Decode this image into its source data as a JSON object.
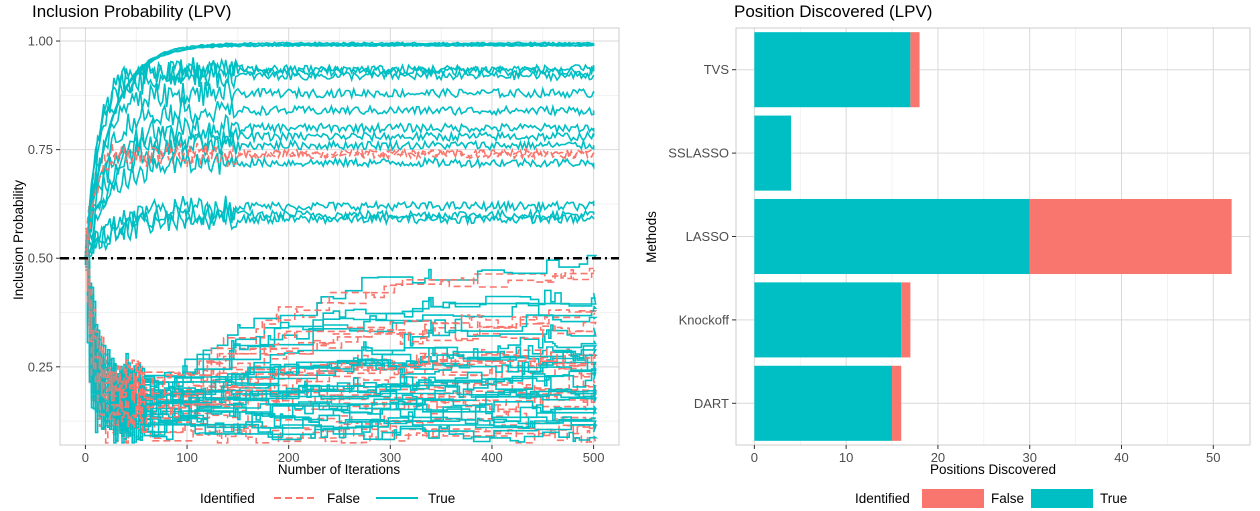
{
  "chart_data": [
    {
      "type": "line",
      "title": "Inclusion Probability (LPV)",
      "xlabel": "Number of Iterations",
      "ylabel": "Inclusion Probability",
      "xlim": [
        -25,
        525
      ],
      "ylim": [
        0.07,
        1.03
      ],
      "x_ticks": [
        0,
        100,
        200,
        300,
        400,
        500
      ],
      "x_tick_labels": [
        "0",
        "100",
        "200",
        "300",
        "400",
        "500"
      ],
      "y_ticks": [
        0.25,
        0.5,
        0.75,
        1.0
      ],
      "y_tick_labels": [
        "0.25",
        "0.50",
        "0.75",
        "1.00"
      ],
      "threshold": 0.5,
      "grid": true,
      "legend": {
        "title": "Identified",
        "position": "bottom",
        "entries": [
          "False",
          "True"
        ]
      },
      "colors": {
        "False": "#F8766D",
        "True": "#00BFC4",
        "threshold": "#000000"
      },
      "series_groups": [
        {
          "name": "True",
          "style": "solid",
          "final_values": [
            0.995,
            0.993,
            0.99,
            0.99,
            0.935,
            0.93,
            0.92,
            0.88,
            0.84,
            0.8,
            0.78,
            0.76,
            0.72,
            0.62,
            0.6,
            0.59,
            0.5,
            0.42,
            0.41,
            0.39,
            0.36,
            0.34,
            0.31,
            0.29,
            0.28,
            0.27,
            0.26,
            0.25,
            0.24,
            0.23,
            0.22,
            0.21,
            0.2,
            0.19,
            0.18,
            0.17,
            0.16,
            0.15,
            0.14,
            0.13,
            0.12,
            0.11,
            0.1,
            0.09
          ]
        },
        {
          "name": "False",
          "style": "dashed",
          "final_values": [
            0.74,
            0.47,
            0.37,
            0.34,
            0.28,
            0.27,
            0.25,
            0.24,
            0.22,
            0.2,
            0.19,
            0.18,
            0.17,
            0.16,
            0.13,
            0.11,
            0.1,
            0.09
          ]
        }
      ]
    },
    {
      "type": "bar",
      "orientation": "horizontal",
      "stacked": true,
      "title": "Position Discovered (LPV)",
      "xlabel": "Positions Discovered",
      "ylabel": "Methods",
      "categories": [
        "TVS",
        "SSLASSO",
        "LASSO",
        "Knockoff",
        "DART"
      ],
      "series": [
        {
          "name": "True",
          "values": [
            17,
            4,
            30,
            16,
            15
          ]
        },
        {
          "name": "False",
          "values": [
            1,
            0,
            22,
            1,
            1
          ]
        }
      ],
      "xlim": [
        -2,
        54
      ],
      "x_ticks": [
        0,
        10,
        20,
        30,
        40,
        50
      ],
      "x_tick_labels": [
        "0",
        "10",
        "20",
        "30",
        "40",
        "50"
      ],
      "grid": true,
      "legend": {
        "title": "Identified",
        "position": "bottom",
        "entries": [
          "False",
          "True"
        ]
      },
      "colors": {
        "False": "#F8766D",
        "True": "#00BFC4"
      }
    }
  ]
}
